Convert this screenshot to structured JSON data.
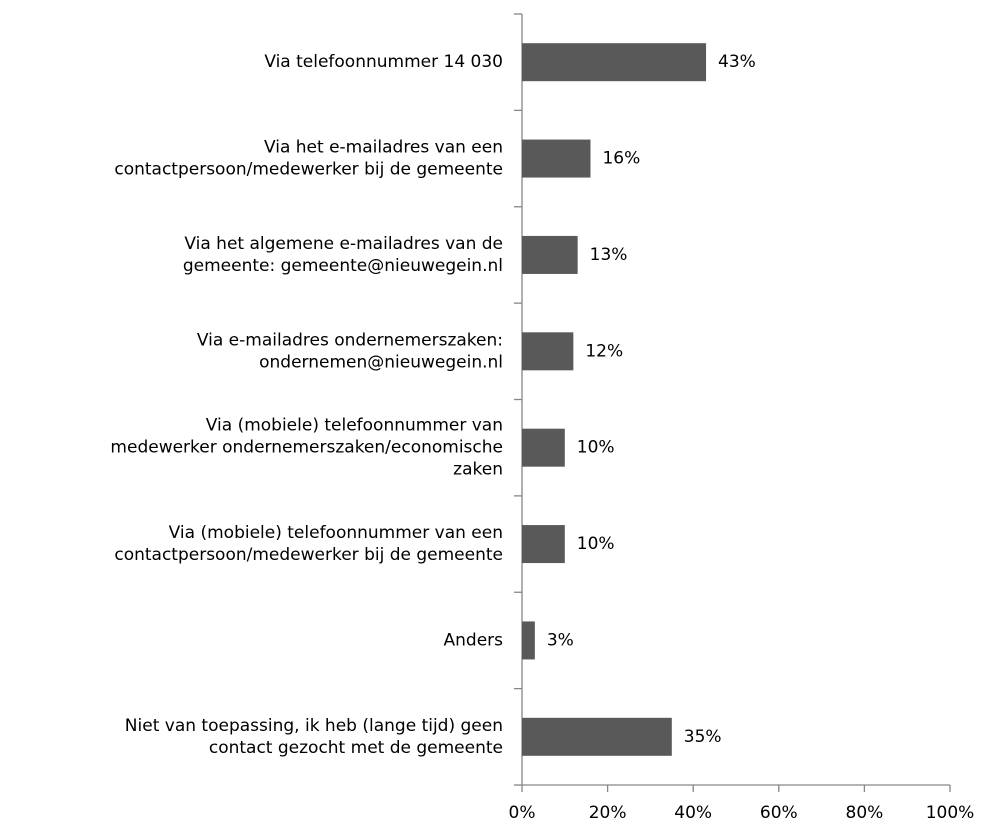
{
  "chart_data": {
    "type": "hbar",
    "categories": [
      "Via telefoonnummer 14 030",
      "Via het e-mailadres van een\ncontactpersoon/medewerker bij de gemeente",
      "Via het algemene e-mailadres van de\ngemeente: gemeente@nieuwegein.nl",
      "Via e-mailadres ondernemerszaken:\nondernemen@nieuwegein.nl",
      "Via (mobiele) telefoonnummer van\nmedewerker ondernemerszaken/economische\nzaken",
      "Via (mobiele) telefoonnummer van een\ncontactpersoon/medewerker bij de gemeente",
      "Anders",
      "Niet van toepassing, ik heb (lange tijd) geen\ncontact gezocht met de gemeente"
    ],
    "values": [
      43,
      16,
      13,
      12,
      10,
      10,
      3,
      35
    ],
    "value_labels": [
      "43%",
      "16%",
      "13%",
      "12%",
      "10%",
      "10%",
      "3%",
      "35%"
    ],
    "color": "#595959",
    "xlim": [
      0,
      100
    ],
    "xticks": [
      {
        "value": 0,
        "label": "0%"
      },
      {
        "value": 20,
        "label": "20%"
      },
      {
        "value": 40,
        "label": "40%"
      },
      {
        "value": 60,
        "label": "60%"
      },
      {
        "value": 80,
        "label": "80%"
      },
      {
        "value": 100,
        "label": "100%"
      }
    ]
  }
}
